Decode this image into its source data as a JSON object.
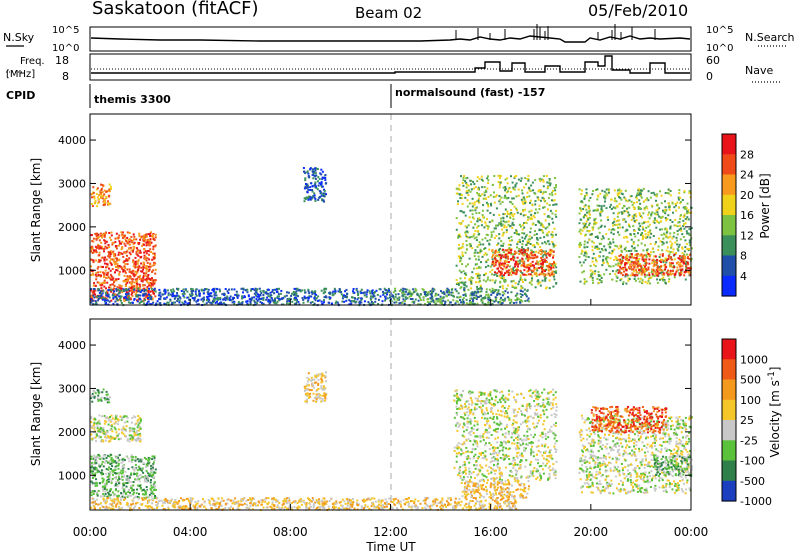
{
  "header": {
    "station": "Saskatoon (fitACF)",
    "beam": "Beam 02",
    "date": "05/Feb/2010"
  },
  "strip_labels": {
    "nsky": "N.Sky",
    "nsky_top": "10^5",
    "nsky_bottom": "10^0",
    "nsearch": "N.Search",
    "nsearch_top": "10^5",
    "nsearch_bottom": "10^0",
    "freq_line1": "Freq.",
    "freq_line2": "[MHz]",
    "freq_top": "18",
    "freq_bottom": "8",
    "nave": "Nave",
    "nave_top": "60",
    "nave_bottom": "0",
    "cpid": "CPID",
    "cpid_1": "themis 3300",
    "cpid_2": "normalsound (fast) -157"
  },
  "chart_data": [
    {
      "type": "heatmap",
      "panel": "power",
      "ylabel": "Slant Range [km]",
      "xlabel": "Time UT",
      "ylim": [
        200,
        4600
      ],
      "yticks": [
        "1000",
        "2000",
        "3000",
        "4000"
      ],
      "xticks": [
        "00:00",
        "04:00",
        "08:00",
        "12:00",
        "16:00",
        "20:00",
        "00:00"
      ],
      "colorbar_label": "Power [dB]",
      "colorbar_ticks": [
        "4",
        "8",
        "12",
        "16",
        "20",
        "24",
        "28"
      ],
      "colors": [
        "#0a2bff",
        "#1f4fa8",
        "#3a8f5a",
        "#7ec242",
        "#f0d21a",
        "#f79a1e",
        "#ef4a17",
        "#e8141a"
      ],
      "regions": [
        {
          "t0": 0.0,
          "t1": 2.6,
          "r0": 300,
          "r1": 1900,
          "level": 6
        },
        {
          "t0": 0.0,
          "t1": 0.8,
          "r0": 2500,
          "r1": 3000,
          "level": 5
        },
        {
          "t0": 0.0,
          "t1": 12.0,
          "r0": 220,
          "r1": 600,
          "level": 1
        },
        {
          "t0": 8.5,
          "t1": 9.4,
          "r0": 2600,
          "r1": 3400,
          "level": 1
        },
        {
          "t0": 12.0,
          "t1": 17.5,
          "r0": 220,
          "r1": 600,
          "level": 2
        },
        {
          "t0": 14.6,
          "t1": 18.6,
          "r0": 600,
          "r1": 3200,
          "level": 3
        },
        {
          "t0": 16.0,
          "t1": 18.5,
          "r0": 900,
          "r1": 1500,
          "level": 6
        },
        {
          "t0": 19.5,
          "t1": 24.0,
          "r0": 700,
          "r1": 2900,
          "level": 3
        },
        {
          "t0": 21.0,
          "t1": 24.0,
          "r0": 900,
          "r1": 1400,
          "level": 6
        }
      ]
    },
    {
      "type": "heatmap",
      "panel": "velocity",
      "ylabel": "Slant Range [km]",
      "xlabel": "Time UT",
      "ylim": [
        200,
        4600
      ],
      "yticks": [
        "1000",
        "2000",
        "3000",
        "4000"
      ],
      "xticks": [
        "00:00",
        "04:00",
        "08:00",
        "12:00",
        "16:00",
        "20:00",
        "00:00"
      ],
      "colorbar_label": "Velocity [m s",
      "colorbar_label_sup": "-1",
      "colorbar_label_end": "]",
      "colorbar_ticks": [
        "1000",
        "500",
        "100",
        "25",
        "-25",
        "-100",
        "-500",
        "-1000"
      ],
      "colors": [
        "#1b3fbf",
        "#2f7f4a",
        "#5ac13a",
        "#c8c8c8",
        "#f4c62a",
        "#f39a1e",
        "#ef5a16",
        "#e8141a"
      ],
      "regions": [
        {
          "t0": 0.0,
          "t1": 2.6,
          "r0": 500,
          "r1": 1500,
          "level": 2
        },
        {
          "t0": 0.0,
          "t1": 2.0,
          "r0": 1800,
          "r1": 2400,
          "level": 3
        },
        {
          "t0": 0.0,
          "t1": 0.8,
          "r0": 2700,
          "r1": 3000,
          "level": 2
        },
        {
          "t0": 0.0,
          "t1": 17.0,
          "r0": 220,
          "r1": 500,
          "level": 4
        },
        {
          "t0": 8.5,
          "t1": 9.4,
          "r0": 2700,
          "r1": 3400,
          "level": 4
        },
        {
          "t0": 14.5,
          "t1": 18.6,
          "r0": 900,
          "r1": 3000,
          "level": 3
        },
        {
          "t0": 14.8,
          "t1": 17.5,
          "r0": 500,
          "r1": 900,
          "level": 4
        },
        {
          "t0": 19.5,
          "t1": 24.0,
          "r0": 600,
          "r1": 2400,
          "level": 3
        },
        {
          "t0": 20.0,
          "t1": 23.0,
          "r0": 2000,
          "r1": 2600,
          "level": 6
        },
        {
          "t0": 22.5,
          "t1": 24.0,
          "r0": 1000,
          "r1": 1500,
          "level": 2
        }
      ]
    }
  ]
}
